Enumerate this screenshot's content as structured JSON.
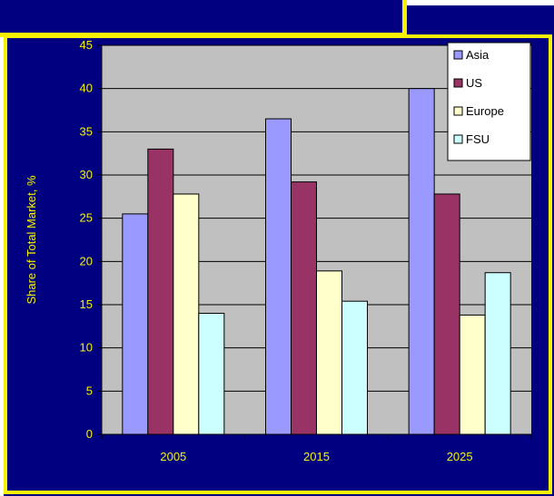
{
  "chart_data": {
    "type": "bar",
    "categories": [
      "2005",
      "2015",
      "2025"
    ],
    "series": [
      {
        "name": "Asia",
        "values": [
          25.5,
          36.5,
          40
        ],
        "color": "#9999ff"
      },
      {
        "name": "US",
        "values": [
          33,
          29.2,
          27.8
        ],
        "color": "#993366"
      },
      {
        "name": "Europe",
        "values": [
          27.8,
          18.9,
          13.8
        ],
        "color": "#ffffcc"
      },
      {
        "name": "FSU",
        "values": [
          14,
          15.4,
          18.7
        ],
        "color": "#ccffff"
      }
    ],
    "title": "",
    "xlabel": "",
    "ylabel": "Share of Total Market, %",
    "ylim": [
      0,
      45
    ],
    "yticks": [
      "0",
      "5",
      "10",
      "15",
      "20",
      "25",
      "30",
      "35",
      "40",
      "45"
    ],
    "grid": true,
    "legend_position": "top-right"
  },
  "colors": {
    "background": "#000080",
    "frame": "#f7f300",
    "plot_area": "#c0c0c0",
    "text": "#f7f300"
  }
}
